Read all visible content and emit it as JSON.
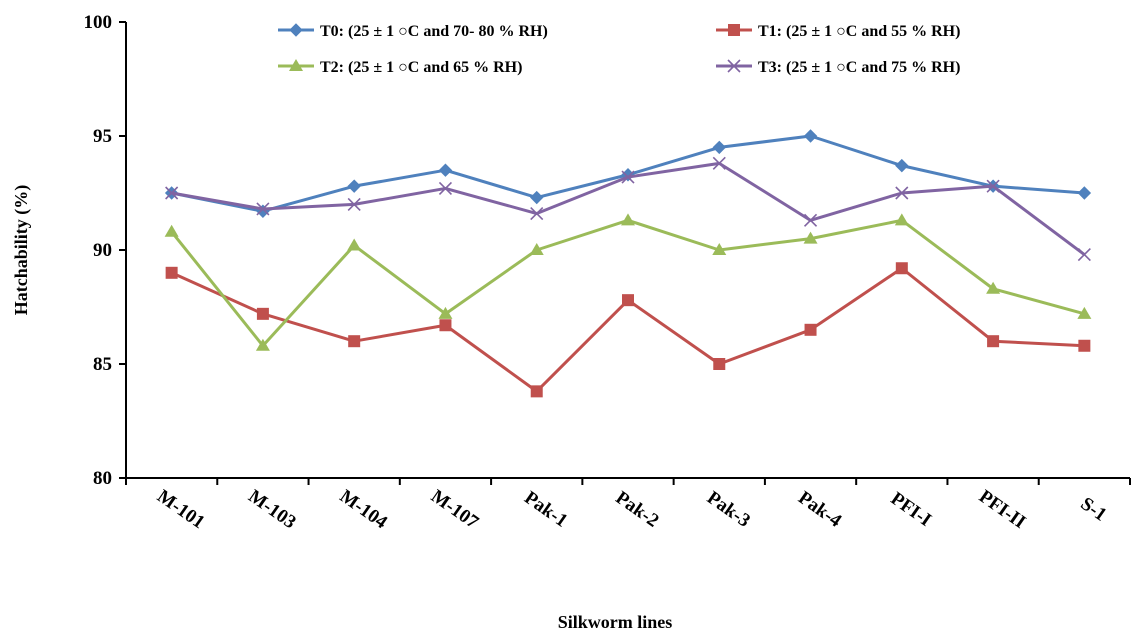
{
  "chart_data": {
    "type": "line",
    "title": "",
    "xlabel": "Silkworm lines",
    "ylabel": "Hatchability (%)",
    "ylim": [
      80,
      100
    ],
    "yticks": [
      "80",
      "85",
      "90",
      "95",
      "100"
    ],
    "categories": [
      "M-101",
      "M-103",
      "M-104",
      "M-107",
      "Pak-1",
      "Pak-2",
      "Pak-3",
      "Pak-4",
      "PFI-I",
      "PFI-II",
      "S-1"
    ],
    "legend_position": "top",
    "grid": false,
    "series": [
      {
        "name": "T0: (25 ± 1 ○C and 70- 80 % RH)",
        "color": "#4F81BD",
        "marker": "diamond",
        "values": [
          92.5,
          91.7,
          92.8,
          93.5,
          92.3,
          93.3,
          94.5,
          95.0,
          93.7,
          92.8,
          92.5
        ]
      },
      {
        "name": "T1: (25 ± 1 ○C and 55 % RH)",
        "color": "#C0504D",
        "marker": "square",
        "values": [
          89.0,
          87.2,
          86.0,
          86.7,
          83.8,
          87.8,
          85.0,
          86.5,
          89.2,
          86.0,
          85.8
        ]
      },
      {
        "name": "T2: (25 ± 1 ○C and 65 % RH)",
        "color": "#9BBB59",
        "marker": "triangle",
        "values": [
          90.8,
          85.8,
          90.2,
          87.2,
          90.0,
          91.3,
          90.0,
          90.5,
          91.3,
          88.3,
          87.2
        ]
      },
      {
        "name": "T3: (25 ± 1 ○C and 75 % RH)",
        "color": "#8064A2",
        "marker": "x",
        "values": [
          92.5,
          91.8,
          92.0,
          92.7,
          91.6,
          93.2,
          93.8,
          91.3,
          92.5,
          92.8,
          89.8
        ]
      }
    ]
  }
}
